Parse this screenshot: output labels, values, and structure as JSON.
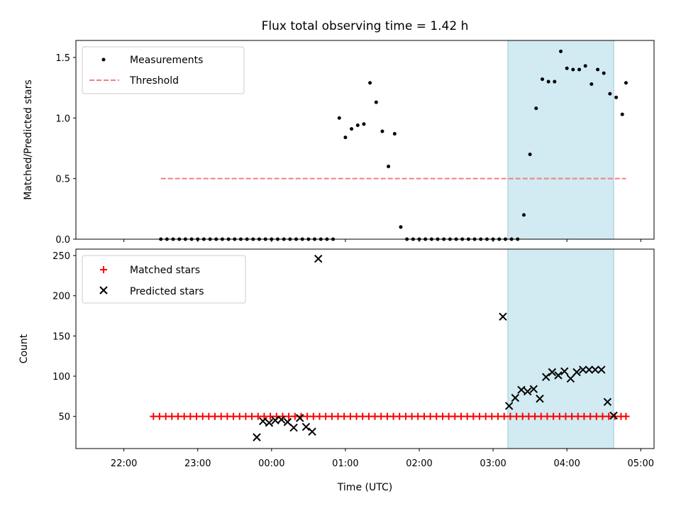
{
  "chart_data": [
    {
      "type": "scatter",
      "title": "Flux total observing time = 1.42 h",
      "xlabel": "",
      "ylabel": "Matched/Predicted stars",
      "xlim": [
        21.35,
        5.18
      ],
      "ylim": [
        0,
        1.64
      ],
      "yticks": [
        0.0,
        0.5,
        1.0,
        1.5
      ],
      "ytick_labels": [
        "0.0",
        "0.5",
        "1.0",
        "1.5"
      ],
      "shaded_interval": [
        3.2,
        4.633
      ],
      "shade_color": "#add8e6",
      "legend": {
        "placement": "top-left",
        "entries": [
          {
            "label": "Measurements",
            "marker": "dot",
            "color": "#000000"
          },
          {
            "label": "Threshold",
            "marker": "dashed-line",
            "color": "#f08080"
          }
        ]
      },
      "threshold": {
        "value": 0.5,
        "x_range": [
          22.5,
          4.8
        ],
        "color": "#f08080"
      },
      "series": [
        {
          "name": "Measurements",
          "color": "#000000",
          "x": [
            22.5,
            22.583,
            22.667,
            22.75,
            22.833,
            22.917,
            23.0,
            23.083,
            23.167,
            23.25,
            23.333,
            23.417,
            23.5,
            23.583,
            23.667,
            23.75,
            23.833,
            23.917,
            24.0,
            24.083,
            24.167,
            24.25,
            24.333,
            24.417,
            24.5,
            24.583,
            24.667,
            24.75,
            24.833,
            24.917,
            25.0,
            25.083,
            25.167,
            25.25,
            25.333,
            25.417,
            25.5,
            25.583,
            25.667,
            25.75,
            25.833,
            25.917,
            26.0,
            26.083,
            26.167,
            26.25,
            26.333,
            26.417,
            26.5,
            26.583,
            26.667,
            26.75,
            26.833,
            26.917,
            27.0,
            27.083,
            27.167,
            27.25,
            27.333,
            27.417,
            27.5,
            27.583,
            27.667,
            27.75,
            27.833,
            27.917,
            28.0,
            28.083,
            28.167,
            28.25,
            28.333,
            28.417,
            28.5,
            28.583,
            28.667,
            28.75,
            28.8
          ],
          "y": [
            0,
            0,
            0,
            0,
            0,
            0,
            0,
            0,
            0,
            0,
            0,
            0,
            0,
            0,
            0,
            0,
            0,
            0,
            0,
            0,
            0,
            0,
            0,
            0,
            0,
            0,
            0,
            0,
            0,
            1.0,
            0.84,
            0.91,
            0.94,
            0.95,
            1.29,
            1.13,
            0.89,
            0.6,
            0.87,
            0.1,
            0,
            0,
            0,
            0,
            0,
            0,
            0,
            0,
            0,
            0,
            0,
            0,
            0,
            0,
            0,
            0,
            0,
            0,
            0,
            0.2,
            0.7,
            1.08,
            1.32,
            1.3,
            1.3,
            1.55,
            1.41,
            1.4,
            1.4,
            1.43,
            1.28,
            1.4,
            1.37,
            1.2,
            1.17,
            1.03,
            1.29
          ]
        }
      ]
    },
    {
      "type": "scatter",
      "title": "",
      "xlabel": "Time (UTC)",
      "ylabel": "Count",
      "xlim": [
        21.35,
        5.18
      ],
      "ylim": [
        10,
        258
      ],
      "yticks": [
        50,
        100,
        150,
        200,
        250
      ],
      "ytick_labels": [
        "50",
        "100",
        "150",
        "200",
        "250"
      ],
      "xticks": [
        22,
        23,
        24,
        25,
        26,
        27,
        28,
        29
      ],
      "xtick_labels": [
        "22:00",
        "23:00",
        "00:00",
        "01:00",
        "02:00",
        "03:00",
        "04:00",
        "05:00"
      ],
      "shaded_interval": [
        3.2,
        4.633
      ],
      "shade_color": "#add8e6",
      "legend": {
        "placement": "top-left",
        "entries": [
          {
            "label": "Matched stars",
            "marker": "plus",
            "color": "#ff0000"
          },
          {
            "label": "Predicted stars",
            "marker": "x",
            "color": "#000000"
          }
        ]
      },
      "series": [
        {
          "name": "Matched stars",
          "color": "#ff0000",
          "x": [
            22.4,
            22.483,
            22.567,
            22.65,
            22.733,
            22.817,
            22.9,
            22.983,
            23.067,
            23.15,
            23.233,
            23.317,
            23.4,
            23.483,
            23.567,
            23.65,
            23.733,
            23.817,
            23.9,
            23.983,
            24.067,
            24.15,
            24.233,
            24.317,
            24.4,
            24.483,
            24.567,
            24.65,
            24.733,
            24.817,
            24.9,
            24.983,
            25.067,
            25.15,
            25.233,
            25.317,
            25.4,
            25.483,
            25.567,
            25.65,
            25.733,
            25.817,
            25.9,
            25.983,
            26.067,
            26.15,
            26.233,
            26.317,
            26.4,
            26.483,
            26.567,
            26.65,
            26.733,
            26.817,
            26.9,
            26.983,
            27.067,
            27.15,
            27.233,
            27.317,
            27.4,
            27.483,
            27.567,
            27.65,
            27.733,
            27.817,
            27.9,
            27.983,
            28.067,
            28.15,
            28.233,
            28.317,
            28.4,
            28.483,
            28.567,
            28.65,
            28.733,
            28.8
          ],
          "y": [
            50,
            50,
            50,
            50,
            50,
            50,
            50,
            50,
            50,
            50,
            50,
            50,
            50,
            50,
            50,
            50,
            50,
            50,
            50,
            50,
            50,
            50,
            50,
            50,
            50,
            50,
            50,
            50,
            50,
            50,
            50,
            50,
            50,
            50,
            50,
            50,
            50,
            50,
            50,
            50,
            50,
            50,
            50,
            50,
            50,
            50,
            50,
            50,
            50,
            50,
            50,
            50,
            50,
            50,
            50,
            50,
            50,
            50,
            50,
            50,
            50,
            50,
            50,
            50,
            50,
            50,
            50,
            50,
            50,
            50,
            50,
            50,
            50,
            50,
            50,
            50,
            50,
            50
          ],
          "x_actual": [
            22.4,
            22.483,
            22.567,
            22.65,
            22.733,
            22.817,
            22.9,
            22.983,
            23.067,
            23.15,
            23.233,
            23.317,
            23.4,
            23.483,
            23.567,
            23.65,
            23.733,
            23.817,
            23.9,
            23.983,
            24.067,
            24.15,
            24.233,
            24.317,
            24.4,
            24.483,
            24.567,
            24.65,
            24.733,
            24.817,
            24.9,
            24.983,
            25.067,
            25.15,
            25.233,
            25.317,
            25.4,
            25.483,
            25.567,
            25.65,
            25.733,
            25.817,
            25.9,
            25.983,
            26.067,
            26.15,
            26.233,
            26.317,
            26.4,
            26.483,
            26.567,
            26.65,
            26.733,
            26.817,
            26.9,
            26.983,
            27.067,
            27.15,
            27.233,
            27.317,
            27.4,
            27.483,
            27.567,
            27.65,
            27.733,
            27.817,
            27.9,
            27.983,
            28.067,
            28.15,
            28.233,
            28.317,
            28.4,
            28.483,
            28.567,
            28.65,
            28.733,
            28.8
          ]
        },
        {
          "name": "Predicted stars",
          "color": "#000000",
          "x": [
            23.8,
            23.883,
            23.967,
            24.05,
            24.133,
            24.217,
            24.3,
            24.383,
            24.467,
            24.55,
            24.633,
            27.133,
            27.217,
            27.3,
            27.383,
            27.467,
            27.55,
            27.633,
            27.717,
            27.8,
            27.883,
            27.967,
            28.05,
            28.133,
            28.217,
            28.3,
            28.383,
            28.467,
            28.55,
            28.633
          ],
          "y": [
            24,
            44,
            42,
            45,
            46,
            43,
            36,
            48,
            37,
            31,
            246,
            174,
            63,
            73,
            83,
            81,
            84,
            72,
            99,
            105,
            101,
            106,
            97,
            105,
            108,
            108,
            108,
            108,
            68,
            51
          ]
        }
      ]
    }
  ]
}
